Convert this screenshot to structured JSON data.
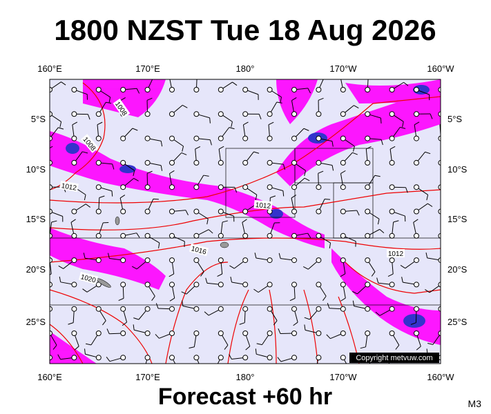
{
  "header": {
    "title": "1800 NZST Tue 18 Aug 2026"
  },
  "axes": {
    "top": [
      "160°E",
      "170°E",
      "180°",
      "170°W",
      "160°W"
    ],
    "bottom": [
      "160°E",
      "170°E",
      "180°",
      "170°W",
      "160°W"
    ],
    "left": [
      "5°S",
      "10°S",
      "15°S",
      "20°S",
      "25°S"
    ],
    "right": [
      "5°S",
      "10°S",
      "15°S",
      "20°S",
      "25°S"
    ]
  },
  "isobar_labels": [
    "1008",
    "1008",
    "1012",
    "1012",
    "1016",
    "1020",
    "1012"
  ],
  "copyright": "Copyright metvuw.com",
  "footer": "Forecast +60 hr",
  "model": "M3"
}
